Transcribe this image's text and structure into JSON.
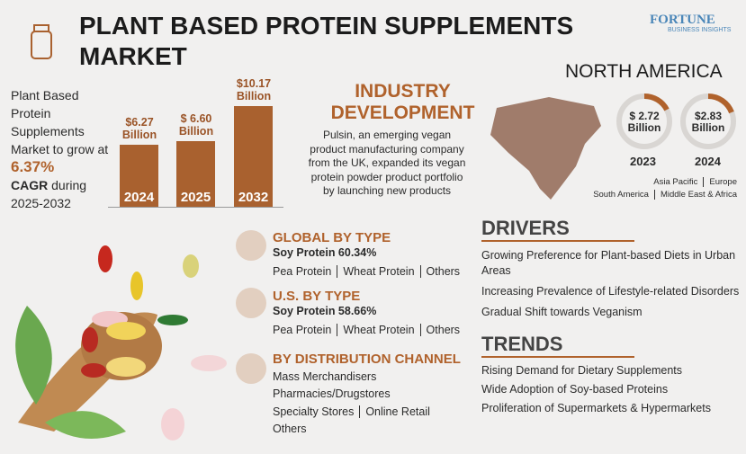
{
  "header": {
    "title": "PLANT BASED PROTEIN SUPPLEMENTS MARKET",
    "brand": "FORTUNE",
    "brand_sub": "BUSINESS INSIGHTS"
  },
  "summary": {
    "text": "Plant Based Protein Supplements Market to grow at",
    "cagr": "6.37%",
    "cagr_label": "CAGR",
    "period": "during 2025-2032"
  },
  "chart_data": {
    "type": "bar",
    "categories": [
      "2024",
      "2025",
      "2032"
    ],
    "values": [
      6.27,
      6.6,
      10.17
    ],
    "value_labels": [
      "$6.27 Billion",
      "$ 6.60 Billion",
      "$10.17 Billion"
    ],
    "color": "#a9612f"
  },
  "industry": {
    "title": "INDUSTRY DEVELOPMENT",
    "text": "Pulsin, an emerging vegan product manufacturing company from the UK, expanded its vegan protein powder product portfolio by launching new products"
  },
  "region": {
    "title": "NORTH AMERICA",
    "stats": [
      {
        "value": "$ 2.72 Billion",
        "year": "2023"
      },
      {
        "value": "$2.83 Billion",
        "year": "2024"
      }
    ],
    "other_regions": [
      "Asia Pacific",
      "Europe",
      "South America",
      "Middle East & Africa"
    ]
  },
  "segments": [
    {
      "title": "GLOBAL BY TYPE",
      "lead": "Soy Protein 60.34%",
      "others": [
        "Pea Protein",
        "Wheat Protein",
        "Others"
      ]
    },
    {
      "title": "U.S. BY TYPE",
      "lead": "Soy Protein 58.66%",
      "others": [
        "Pea Protein",
        "Wheat Protein",
        "Others"
      ]
    },
    {
      "title": "BY DISTRIBUTION CHANNEL",
      "items": [
        "Mass Merchandisers",
        "Pharmacies/Drugstores",
        "Specialty Stores",
        "Online Retail",
        "Others"
      ]
    }
  ],
  "drivers": {
    "title": "DRIVERS",
    "items": [
      "Growing Preference for Plant-based Diets in Urban Areas",
      "Increasing Prevalence of Lifestyle-related Disorders",
      "Gradual Shift towards Veganism"
    ]
  },
  "trends": {
    "title": "TRENDS",
    "items": [
      "Rising Demand for Dietary Supplements",
      "Wide Adoption of Soy-based Proteins",
      "Proliferation of Supermarkets & Hypermarkets"
    ]
  }
}
